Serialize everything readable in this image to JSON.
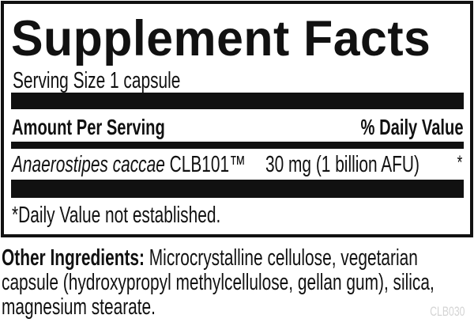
{
  "label": {
    "title": "Supplement Facts",
    "serving_size": "Serving Size 1 capsule",
    "header": {
      "amount": "Amount Per Serving",
      "daily_value": "% Daily Value"
    },
    "rows": [
      {
        "name_italic": "Anaerostipes caccae",
        "name_suffix": "CLB101™",
        "amount": "30 mg (1 billion AFU)",
        "daily_value": "*"
      }
    ],
    "footnote": "*Daily Value not established."
  },
  "other_ingredients": {
    "label": "Other Ingredients:",
    "line1": "Microcrystalline cellulose, vegetarian",
    "line2": "capsule (hydroxypropyl methylcellulose, gellan gum), silica,",
    "line3": "magnesium stearate."
  },
  "code": "CLB030"
}
